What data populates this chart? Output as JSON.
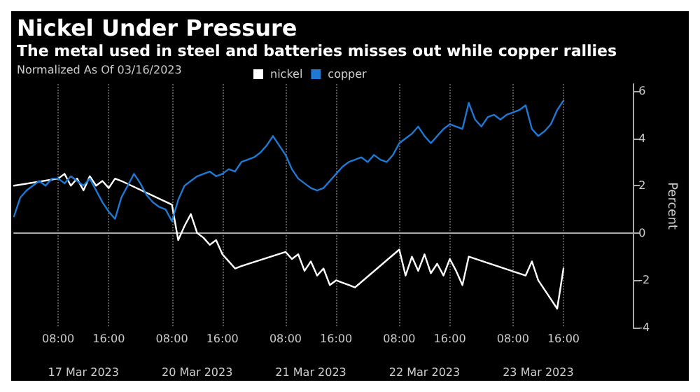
{
  "chart_data": {
    "type": "line",
    "title": "Nickel Under Pressure",
    "subtitle": "The metal used in steel and batteries misses out while copper rallies",
    "legend_title": "Normalized As Of 03/16/2023",
    "ylabel": "Percent",
    "categories": [
      null,
      null,
      null,
      null,
      null,
      null,
      null,
      "08:00",
      null,
      null,
      null,
      null,
      null,
      null,
      null,
      "16:00",
      null,
      null,
      null,
      null,
      null,
      null,
      null,
      null,
      null,
      "08:00",
      null,
      null,
      null,
      null,
      null,
      null,
      null,
      "16:00",
      null,
      null,
      null,
      null,
      null,
      null,
      null,
      null,
      null,
      "08:00",
      null,
      null,
      null,
      null,
      null,
      null,
      null,
      "16:00",
      null,
      null,
      null,
      null,
      null,
      null,
      null,
      null,
      null,
      "08:00",
      null,
      null,
      null,
      null,
      null,
      null,
      null,
      "16:00",
      null,
      null,
      null,
      null,
      null,
      null,
      null,
      null,
      null,
      "08:00",
      null,
      null,
      null,
      null,
      null,
      null,
      null,
      "16:00",
      null,
      null,
      null,
      null,
      null,
      null,
      null,
      null,
      null,
      null,
      null
    ],
    "annotations": [
      "17 Mar 2023",
      "20 Mar 2023",
      "21 Mar 2023",
      "22 Mar 2023",
      "23 Mar 2023"
    ],
    "series": [
      {
        "name": "nickel",
        "color": "#ffffff",
        "values": [
          2.0,
          null,
          null,
          null,
          null,
          null,
          null,
          2.3,
          2.5,
          2.0,
          2.3,
          1.8,
          2.4,
          2.0,
          2.2,
          1.9,
          2.3,
          2.2,
          null,
          null,
          null,
          null,
          null,
          null,
          null,
          1.2,
          -0.3,
          0.3,
          0.8,
          0.0,
          -0.2,
          -0.5,
          -0.3,
          -0.9,
          -1.2,
          -1.5,
          -1.4,
          null,
          null,
          null,
          null,
          null,
          null,
          -0.8,
          -1.1,
          -0.9,
          -1.6,
          -1.2,
          -1.8,
          -1.5,
          -2.2,
          -2.0,
          -2.1,
          -2.2,
          -2.3,
          null,
          null,
          null,
          null,
          null,
          null,
          -0.7,
          -1.8,
          -1.0,
          -1.6,
          -0.9,
          -1.7,
          -1.3,
          -1.8,
          -1.1,
          -1.6,
          -2.2,
          -1.0,
          null,
          null,
          null,
          null,
          null,
          null,
          null,
          null,
          -1.8,
          -1.2,
          -2.0,
          -2.4,
          -2.8,
          -3.2,
          -1.5,
          null,
          null,
          null,
          null,
          null,
          null,
          null,
          null,
          null,
          null,
          null
        ]
      },
      {
        "name": "copper",
        "color": "#1f78d1",
        "values": [
          0.7,
          1.5,
          1.8,
          2.0,
          2.2,
          2.0,
          2.3,
          2.3,
          2.1,
          2.4,
          2.2,
          2.0,
          2.3,
          1.8,
          1.3,
          0.9,
          0.6,
          1.5,
          2.0,
          2.5,
          2.1,
          1.6,
          1.3,
          1.1,
          1.0,
          0.5,
          1.4,
          2.0,
          2.2,
          2.4,
          2.5,
          2.6,
          2.4,
          2.5,
          2.7,
          2.6,
          3.0,
          3.1,
          3.2,
          3.4,
          3.7,
          4.1,
          3.7,
          3.3,
          2.7,
          2.3,
          2.1,
          1.9,
          1.8,
          1.9,
          2.2,
          2.5,
          2.8,
          3.0,
          3.1,
          3.2,
          3.0,
          3.3,
          3.1,
          3.0,
          3.3,
          3.8,
          4.0,
          4.2,
          4.5,
          4.1,
          3.8,
          4.1,
          4.4,
          4.6,
          4.5,
          4.4,
          5.5,
          4.8,
          4.5,
          4.9,
          5.0,
          4.8,
          5.0,
          5.1,
          5.2,
          5.4,
          4.4,
          4.1,
          4.3,
          4.6,
          5.2,
          5.6,
          null,
          null,
          null,
          null,
          null,
          null,
          null,
          null,
          null,
          null,
          null
        ]
      }
    ],
    "ylim": [
      -4,
      6.3
    ],
    "yticks": [
      -4,
      -2,
      0,
      2,
      4,
      6
    ],
    "grid": "x",
    "legend": "top left",
    "marker": "none",
    "line_style": "solid"
  }
}
